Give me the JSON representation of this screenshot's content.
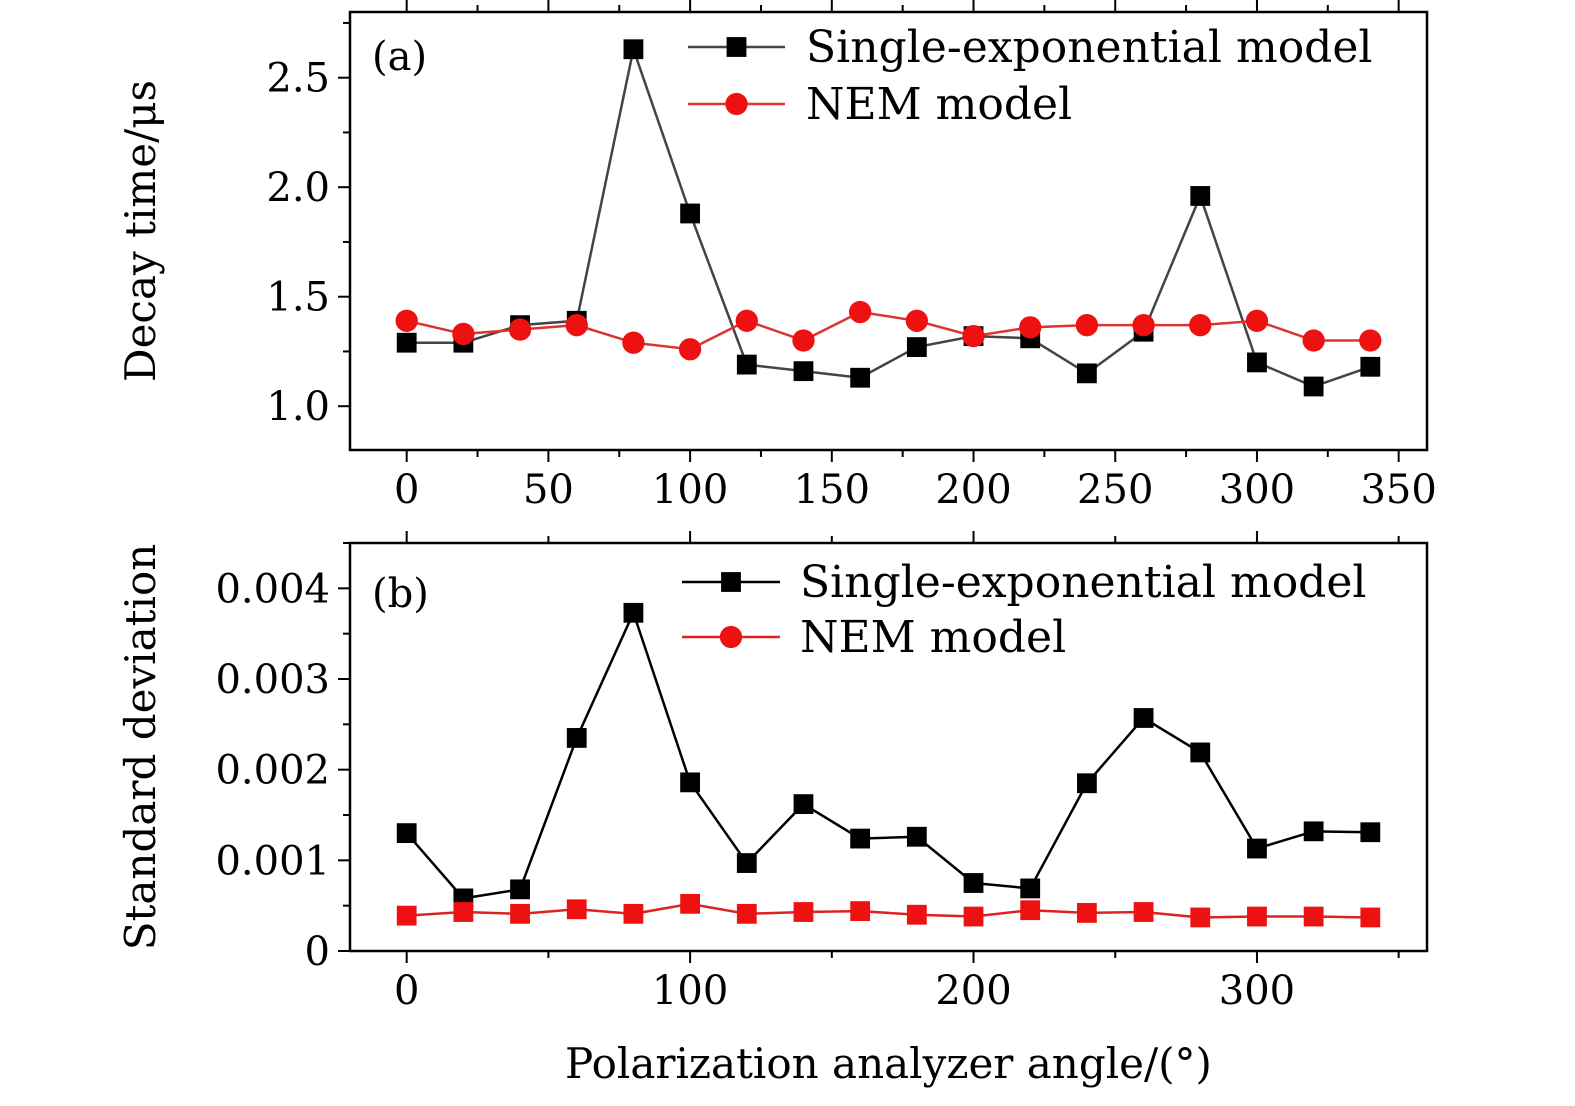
{
  "chart_data": [
    {
      "type": "line",
      "panel_label": "(a)",
      "ylabel": "Decay time/μs",
      "xlabel": "",
      "xlim": [
        -20,
        360
      ],
      "ylim": [
        0.8,
        2.8
      ],
      "xticks": [
        0,
        50,
        100,
        150,
        200,
        250,
        300,
        350
      ],
      "xtick_labels": [
        "0",
        "50",
        "100",
        "150",
        "200",
        "250",
        "300",
        "350"
      ],
      "yticks": [
        1.0,
        1.5,
        2.0,
        2.5
      ],
      "ytick_labels": [
        "1.0",
        "1.5",
        "2.0",
        "2.5"
      ],
      "legend_position": "top-right",
      "x": [
        0,
        20,
        40,
        60,
        80,
        100,
        120,
        140,
        160,
        180,
        200,
        220,
        240,
        260,
        280,
        300,
        320,
        340
      ],
      "series": [
        {
          "name": "Single-exponential model",
          "color": "#000000",
          "line_color": "#444444",
          "marker": "square",
          "values": [
            1.29,
            1.29,
            1.37,
            1.39,
            2.63,
            1.88,
            1.19,
            1.16,
            1.13,
            1.27,
            1.32,
            1.31,
            1.15,
            1.34,
            1.96,
            1.2,
            1.09,
            1.18
          ]
        },
        {
          "name": "NEM model",
          "color": "#ee1111",
          "line_color": "#dd3333",
          "marker": "circle",
          "values": [
            1.39,
            1.33,
            1.35,
            1.37,
            1.29,
            1.26,
            1.39,
            1.3,
            1.43,
            1.39,
            1.32,
            1.36,
            1.37,
            1.37,
            1.37,
            1.39,
            1.3,
            1.3
          ]
        }
      ]
    },
    {
      "type": "line",
      "panel_label": "(b)",
      "ylabel": "Standard deviation",
      "xlabel": "Polarization analyzer angle/(°)",
      "xlim": [
        -20,
        360
      ],
      "ylim": [
        0,
        0.0045
      ],
      "xticks": [
        0,
        100,
        200,
        300
      ],
      "xtick_labels": [
        "0",
        "100",
        "200",
        "300"
      ],
      "yticks": [
        0,
        0.001,
        0.002,
        0.003,
        0.004
      ],
      "ytick_labels": [
        "0",
        "0.001",
        "0.002",
        "0.003",
        "0.004"
      ],
      "legend_position": "top-right",
      "x": [
        0,
        20,
        40,
        60,
        80,
        100,
        120,
        140,
        160,
        180,
        200,
        220,
        240,
        260,
        280,
        300,
        320,
        340
      ],
      "series": [
        {
          "name": "Single-exponential model",
          "color": "#000000",
          "line_color": "#000000",
          "marker": "square",
          "values": [
            0.0013,
            0.00058,
            0.00068,
            0.00235,
            0.00373,
            0.00186,
            0.00097,
            0.00162,
            0.00124,
            0.00126,
            0.00075,
            0.00069,
            0.00185,
            0.00257,
            0.00219,
            0.00113,
            0.00132,
            0.00131
          ]
        },
        {
          "name": "NEM model",
          "color": "#ee1111",
          "line_color": "#dd2222",
          "marker": "square",
          "legend_marker": "circle",
          "values": [
            0.00039,
            0.00043,
            0.00041,
            0.00046,
            0.00041,
            0.00052,
            0.00041,
            0.00043,
            0.00044,
            0.0004,
            0.00038,
            0.00045,
            0.00042,
            0.00043,
            0.00037,
            0.00038,
            0.00038,
            0.00037
          ]
        }
      ]
    }
  ]
}
